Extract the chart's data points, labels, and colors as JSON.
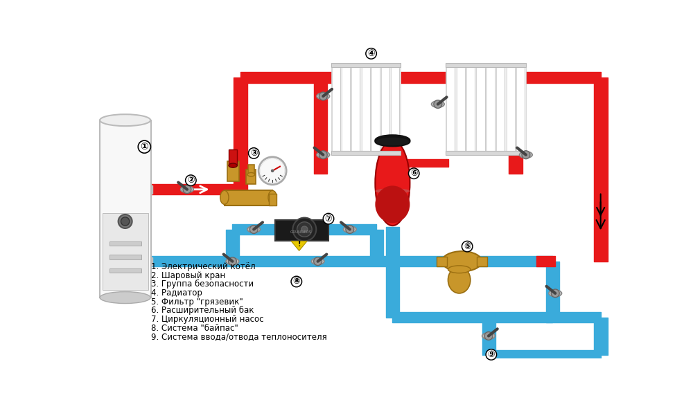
{
  "bg_color": "#ffffff",
  "red_color": "#e8191a",
  "blue_color": "#3aabdb",
  "pipe_lw": 18,
  "legend_items": [
    "1. Электрический котёл",
    "2. Шаровый кран",
    "3. Группа безопасности",
    "4. Радиатор",
    "5. Фильтр \"грязевик\"",
    "6. Расширительный бак",
    "7. Циркуляционный насос",
    "8. Система \"байпас\"",
    "9. Система ввода/отвода теплоносителя"
  ]
}
